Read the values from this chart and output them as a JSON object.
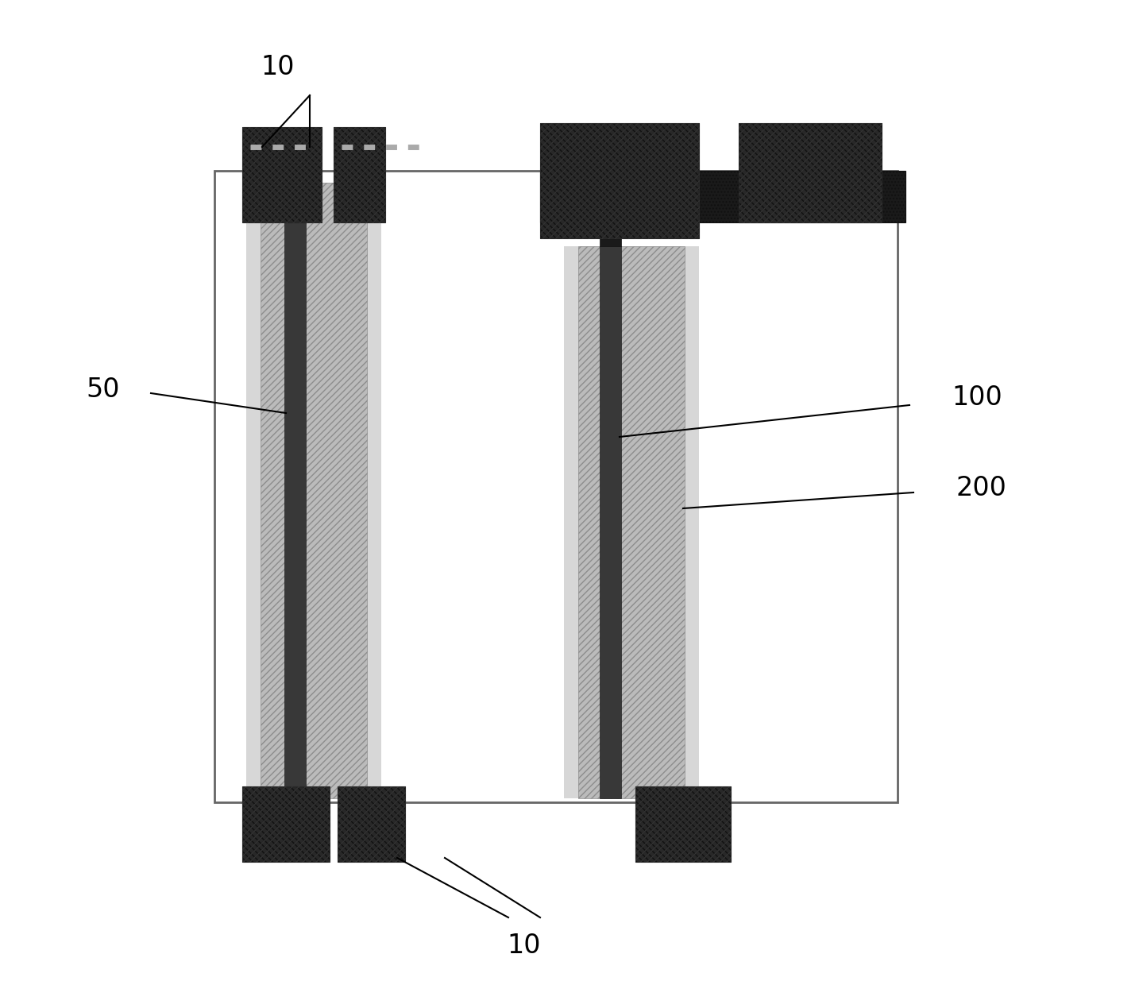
{
  "bg_color": "#ffffff",
  "fig_width": 14.34,
  "fig_height": 12.35,
  "labels": {
    "10_top": "10",
    "50": "50",
    "100": "100",
    "200": "200",
    "10_bot": "10"
  }
}
